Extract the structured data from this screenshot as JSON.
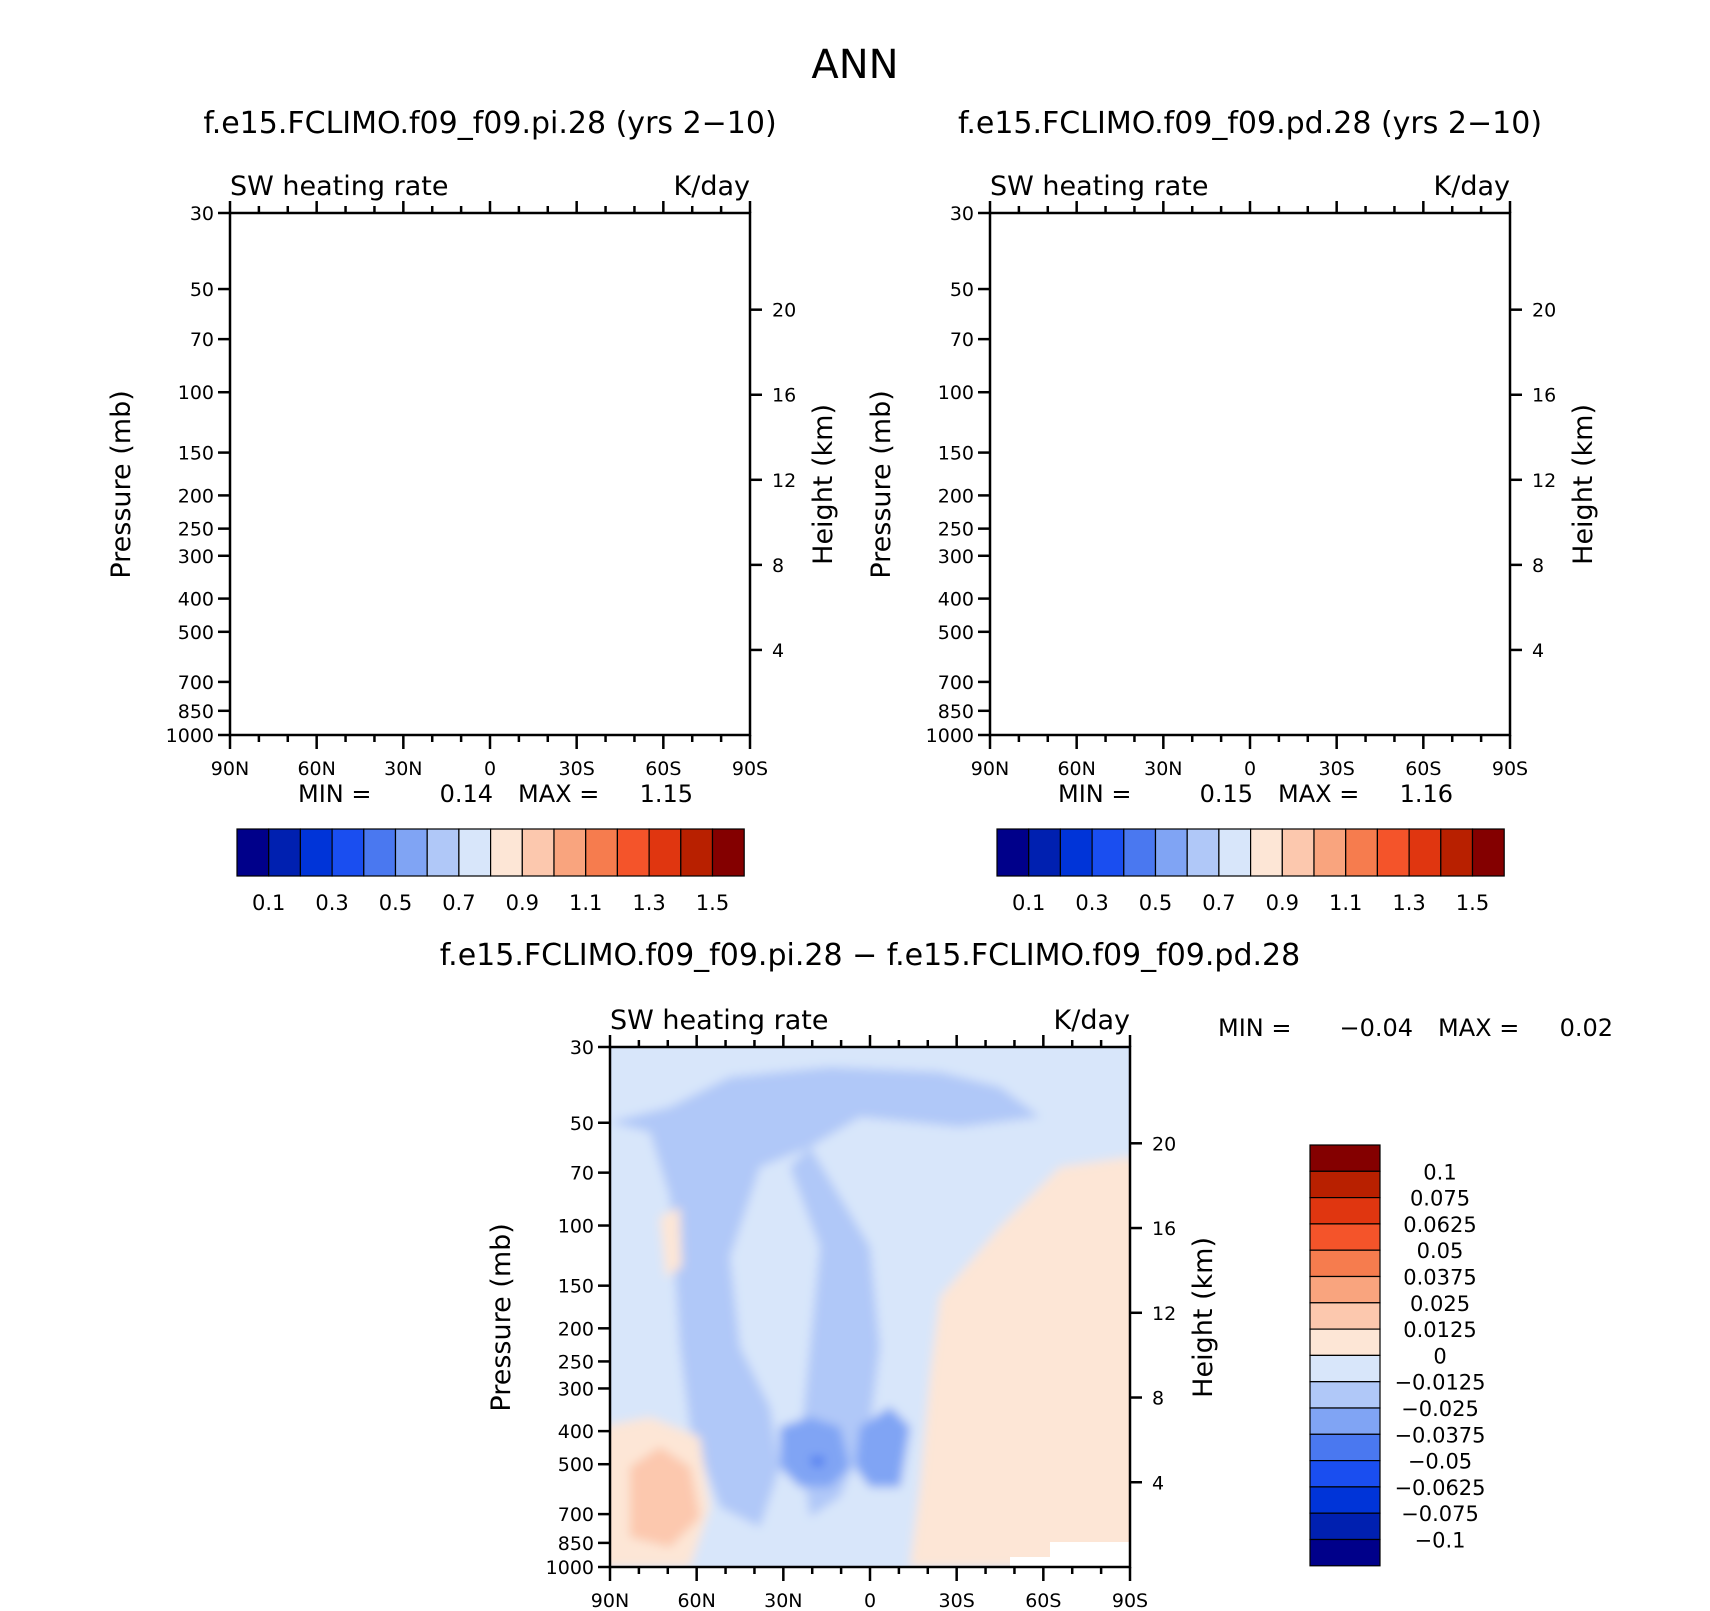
{
  "title": "ANN",
  "panels": [
    {
      "id": "pi",
      "title": "f.e15.FCLIMO.f09_f09.pi.28 (yrs 2−10)",
      "left_label": "SW heating rate",
      "right_label": "K/day",
      "stats": {
        "min_label": "MIN =",
        "min": "0.14",
        "max_label": "MAX =",
        "max": "1.15"
      }
    },
    {
      "id": "pd",
      "title": "f.e15.FCLIMO.f09_f09.pd.28 (yrs 2−10)",
      "left_label": "SW heating rate",
      "right_label": "K/day",
      "stats": {
        "min_label": "MIN =",
        "min": "0.15",
        "max_label": "MAX =",
        "max": "1.16"
      }
    },
    {
      "id": "diff",
      "title": "f.e15.FCLIMO.f09_f09.pi.28 − f.e15.FCLIMO.f09_f09.pd.28",
      "left_label": "SW heating rate",
      "right_label": "K/day",
      "stats": {
        "min_label": "MIN =",
        "min": "−0.04",
        "max_label": "MAX =",
        "max": "0.02"
      }
    }
  ],
  "axes": {
    "ylabel": "Pressure (mb)",
    "y2label": "Height (km)",
    "xticks": [
      "90N",
      "60N",
      "30N",
      "0",
      "30S",
      "60S",
      "90S"
    ],
    "xvals": [
      90,
      60,
      30,
      0,
      -30,
      -60,
      -90
    ],
    "yticks": [
      "30",
      "50",
      "70",
      "100",
      "150",
      "200",
      "250",
      "300",
      "400",
      "500",
      "700",
      "850",
      "1000"
    ],
    "yvals": [
      30,
      50,
      70,
      100,
      150,
      200,
      250,
      300,
      400,
      500,
      700,
      850,
      1000
    ],
    "y2ticks": [
      "20",
      "16",
      "12",
      "8",
      "4"
    ],
    "y2vals": [
      20,
      16,
      12,
      8,
      4
    ],
    "ylim": [
      30,
      1000
    ],
    "xlim": [
      90,
      -90
    ]
  },
  "colorbar_main": {
    "labels": [
      "0.1",
      "0.3",
      "0.5",
      "0.7",
      "0.9",
      "1.1",
      "1.3",
      "1.5"
    ],
    "colors": [
      "#00008a",
      "#0020b0",
      "#0034d8",
      "#1a4ef0",
      "#4a78f0",
      "#80a4f4",
      "#b0c8f8",
      "#d8e6fa",
      "#fde6d6",
      "#fcc8ae",
      "#f9a47e",
      "#f67c4e",
      "#f4542a",
      "#e03610",
      "#b82000",
      "#840000"
    ]
  },
  "colorbar_diff": {
    "labels": [
      "0.1",
      "0.075",
      "0.0625",
      "0.05",
      "0.0375",
      "0.025",
      "0.0125",
      "0",
      "−0.0125",
      "−0.025",
      "−0.0375",
      "−0.05",
      "−0.0625",
      "−0.075",
      "−0.1"
    ],
    "colors": [
      "#840000",
      "#b82000",
      "#e03610",
      "#f4542a",
      "#f67c4e",
      "#f9a47e",
      "#fcc8ae",
      "#fde6d6",
      "#d8e6fa",
      "#b0c8f8",
      "#80a4f4",
      "#4a78f0",
      "#1a4ef0",
      "#0034d8",
      "#0020b0",
      "#00008a"
    ]
  },
  "chart_data": [
    {
      "type": "heatmap",
      "title": "f.e15.FCLIMO.f09_f09.pi.28 (yrs 2−10)",
      "xlabel": "",
      "ylabel": "Pressure (mb)",
      "x": [
        90,
        60,
        30,
        0,
        -30,
        -60,
        -90
      ],
      "y": [
        30,
        50,
        70,
        100,
        150,
        200,
        250,
        300,
        400,
        500,
        700,
        850,
        1000
      ],
      "ylim": [
        30,
        1000
      ],
      "min": 0.14,
      "max": 1.15,
      "units": "K/day"
    },
    {
      "type": "heatmap",
      "title": "f.e15.FCLIMO.f09_f09.pd.28 (yrs 2−10)",
      "xlabel": "",
      "ylabel": "Pressure (mb)",
      "x": [
        90,
        60,
        30,
        0,
        -30,
        -60,
        -90
      ],
      "y": [
        30,
        50,
        70,
        100,
        150,
        200,
        250,
        300,
        400,
        500,
        700,
        850,
        1000
      ],
      "ylim": [
        30,
        1000
      ],
      "min": 0.15,
      "max": 1.16,
      "units": "K/day"
    },
    {
      "type": "heatmap",
      "title": "f.e15.FCLIMO.f09_f09.pi.28 − f.e15.FCLIMO.f09_f09.pd.28",
      "xlabel": "",
      "ylabel": "Pressure (mb)",
      "x": [
        90,
        60,
        30,
        0,
        -30,
        -60,
        -90
      ],
      "y": [
        30,
        50,
        70,
        100,
        150,
        200,
        250,
        300,
        400,
        500,
        700,
        850,
        1000
      ],
      "ylim": [
        30,
        1000
      ],
      "min": -0.04,
      "max": 0.02,
      "units": "K/day"
    }
  ]
}
